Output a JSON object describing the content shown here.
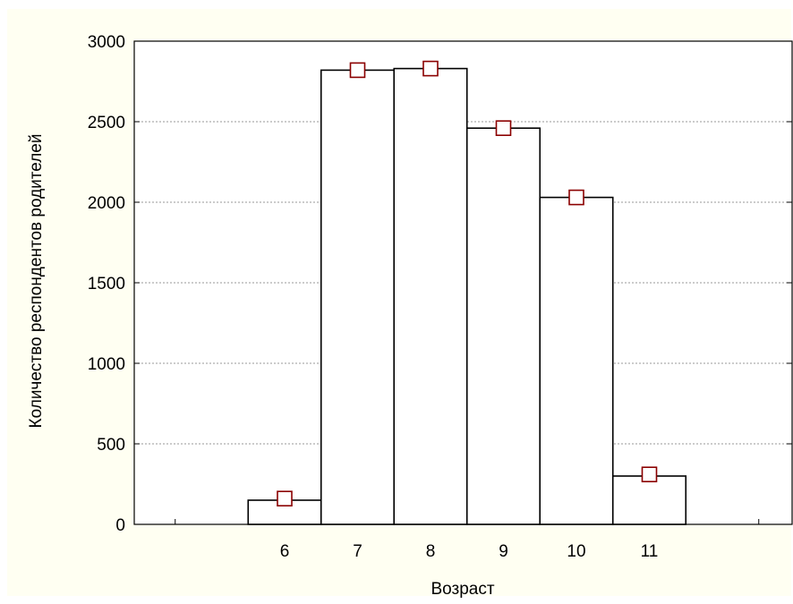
{
  "chart_data": {
    "type": "bar",
    "title": "",
    "xlabel": "Возраст",
    "ylabel": "Количество респондентов родителей",
    "categories": [
      "6",
      "7",
      "8",
      "9",
      "10",
      "11"
    ],
    "values": [
      150,
      2820,
      2830,
      2460,
      2030,
      300
    ],
    "markers": [
      160,
      2820,
      2830,
      2460,
      2030,
      310
    ],
    "ylim": [
      0,
      3000
    ],
    "yticks": [
      "0",
      "500",
      "1000",
      "1500",
      "2000",
      "2500",
      "3000"
    ],
    "grid": true,
    "colors": {
      "bar_fill": "#ffffff",
      "bar_stroke": "#000000",
      "marker": "#8b0000",
      "panel_bg": "#fffff2",
      "plot_bg": "#ffffff"
    }
  }
}
